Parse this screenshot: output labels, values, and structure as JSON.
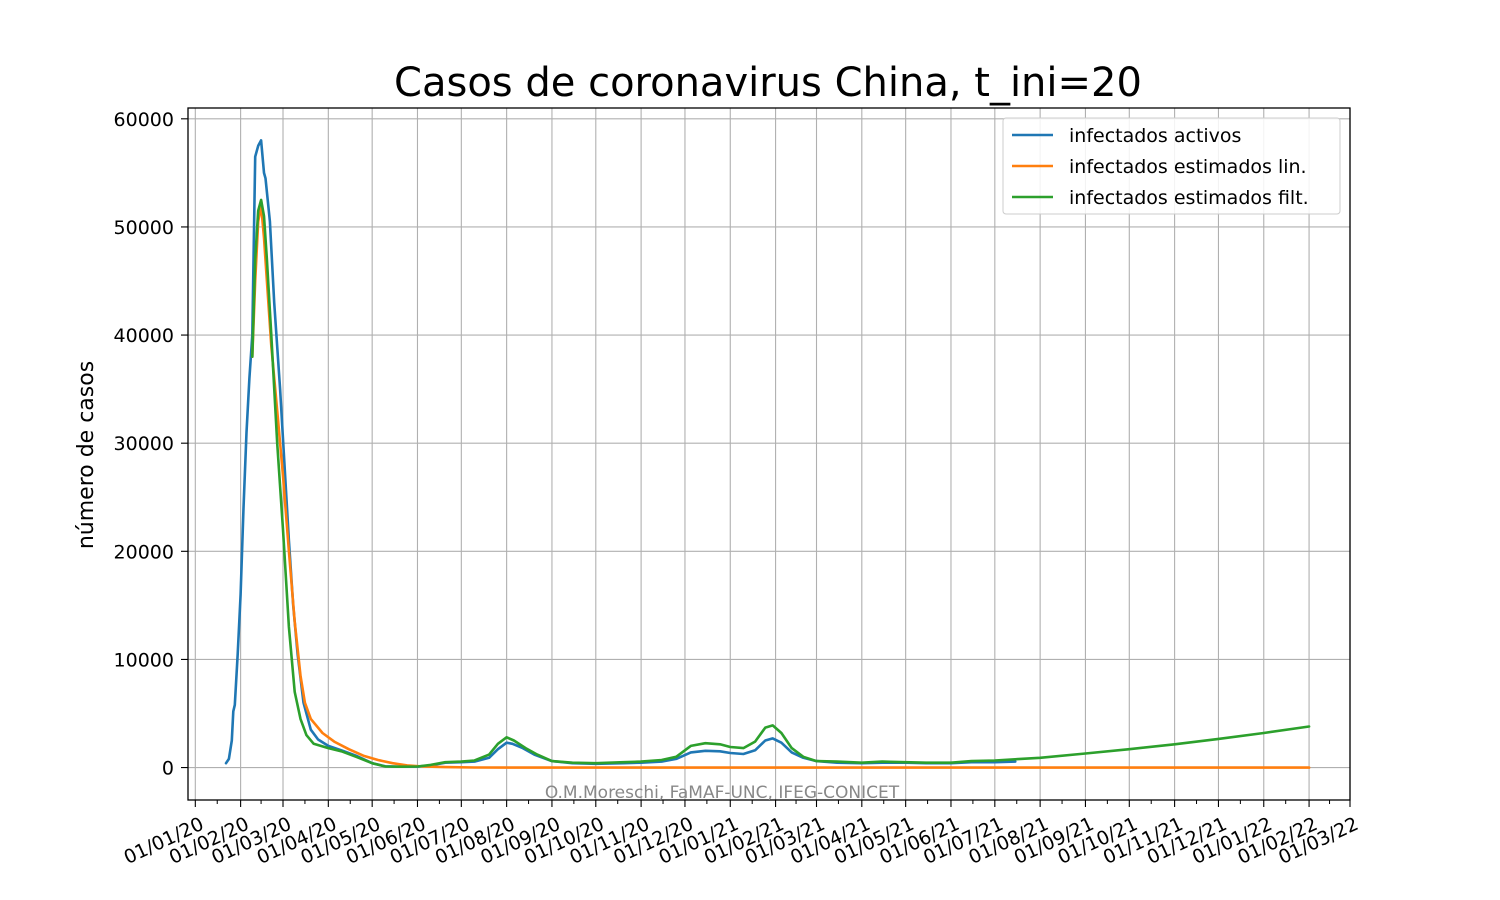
{
  "chart_data": {
    "type": "line",
    "title": "Casos de coronavirus China, t_ini=20",
    "xlabel": "",
    "ylabel": "número de casos",
    "ylim": [
      -3000,
      61000
    ],
    "xlim": [
      "2019-12-27",
      "2022-03-01"
    ],
    "y_ticks": [
      0,
      10000,
      20000,
      30000,
      40000,
      50000,
      60000
    ],
    "x_ticks": [
      {
        "date": "2020-01-01",
        "label": "01/01/20"
      },
      {
        "date": "2020-02-01",
        "label": "01/02/20"
      },
      {
        "date": "2020-03-01",
        "label": "01/03/20"
      },
      {
        "date": "2020-04-01",
        "label": "01/04/20"
      },
      {
        "date": "2020-05-01",
        "label": "01/05/20"
      },
      {
        "date": "2020-06-01",
        "label": "01/06/20"
      },
      {
        "date": "2020-07-01",
        "label": "01/07/20"
      },
      {
        "date": "2020-08-01",
        "label": "01/08/20"
      },
      {
        "date": "2020-09-01",
        "label": "01/09/20"
      },
      {
        "date": "2020-10-01",
        "label": "01/10/20"
      },
      {
        "date": "2020-11-01",
        "label": "01/11/20"
      },
      {
        "date": "2020-12-01",
        "label": "01/12/20"
      },
      {
        "date": "2021-01-01",
        "label": "01/01/21"
      },
      {
        "date": "2021-02-01",
        "label": "01/02/21"
      },
      {
        "date": "2021-03-01",
        "label": "01/03/21"
      },
      {
        "date": "2021-04-01",
        "label": "01/04/21"
      },
      {
        "date": "2021-05-01",
        "label": "01/05/21"
      },
      {
        "date": "2021-06-01",
        "label": "01/06/21"
      },
      {
        "date": "2021-07-01",
        "label": "01/07/21"
      },
      {
        "date": "2021-08-01",
        "label": "01/08/21"
      },
      {
        "date": "2021-09-01",
        "label": "01/09/21"
      },
      {
        "date": "2021-10-01",
        "label": "01/10/21"
      },
      {
        "date": "2021-11-01",
        "label": "01/11/21"
      },
      {
        "date": "2021-12-01",
        "label": "01/12/21"
      },
      {
        "date": "2022-01-01",
        "label": "01/01/22"
      },
      {
        "date": "2022-02-01",
        "label": "01/02/22"
      },
      {
        "date": "2022-03-01",
        "label": "01/03/22"
      }
    ],
    "grid": true,
    "legend_position": "top-right",
    "annotation": "O.M.Moreschi, FaMAF-UNC, IFEG-CONICET",
    "series": [
      {
        "name": "infectados activos",
        "color": "#1f77b4",
        "points": [
          [
            "2020-01-22",
            400
          ],
          [
            "2020-01-24",
            800
          ],
          [
            "2020-01-26",
            2500
          ],
          [
            "2020-01-27",
            5200
          ],
          [
            "2020-01-28",
            5800
          ],
          [
            "2020-01-30",
            10500
          ],
          [
            "2020-02-01",
            16000
          ],
          [
            "2020-02-03",
            24000
          ],
          [
            "2020-02-05",
            31000
          ],
          [
            "2020-02-07",
            36000
          ],
          [
            "2020-02-09",
            40000
          ],
          [
            "2020-02-11",
            56500
          ],
          [
            "2020-02-13",
            57500
          ],
          [
            "2020-02-15",
            58000
          ],
          [
            "2020-02-17",
            55000
          ],
          [
            "2020-02-18",
            54500
          ],
          [
            "2020-02-21",
            50500
          ],
          [
            "2020-02-24",
            43000
          ],
          [
            "2020-02-28",
            35000
          ],
          [
            "2020-03-02",
            28000
          ],
          [
            "2020-03-05",
            21000
          ],
          [
            "2020-03-08",
            15000
          ],
          [
            "2020-03-11",
            10500
          ],
          [
            "2020-03-15",
            6000
          ],
          [
            "2020-03-20",
            3500
          ],
          [
            "2020-03-25",
            2600
          ],
          [
            "2020-04-01",
            2000
          ],
          [
            "2020-04-10",
            1600
          ],
          [
            "2020-04-20",
            1100
          ],
          [
            "2020-05-01",
            400
          ],
          [
            "2020-05-10",
            120
          ],
          [
            "2020-05-20",
            80
          ],
          [
            "2020-06-01",
            90
          ],
          [
            "2020-06-10",
            200
          ],
          [
            "2020-06-20",
            450
          ],
          [
            "2020-07-01",
            500
          ],
          [
            "2020-07-10",
            550
          ],
          [
            "2020-07-20",
            900
          ],
          [
            "2020-07-26",
            1700
          ],
          [
            "2020-08-01",
            2300
          ],
          [
            "2020-08-05",
            2200
          ],
          [
            "2020-08-12",
            1800
          ],
          [
            "2020-08-20",
            1200
          ],
          [
            "2020-09-01",
            600
          ],
          [
            "2020-09-15",
            400
          ],
          [
            "2020-10-01",
            350
          ],
          [
            "2020-10-20",
            400
          ],
          [
            "2020-11-01",
            450
          ],
          [
            "2020-11-15",
            550
          ],
          [
            "2020-11-25",
            800
          ],
          [
            "2020-12-05",
            1400
          ],
          [
            "2020-12-15",
            1550
          ],
          [
            "2020-12-25",
            1500
          ],
          [
            "2021-01-01",
            1350
          ],
          [
            "2021-01-10",
            1250
          ],
          [
            "2021-01-18",
            1600
          ],
          [
            "2021-01-25",
            2500
          ],
          [
            "2021-01-30",
            2700
          ],
          [
            "2021-02-05",
            2300
          ],
          [
            "2021-02-12",
            1400
          ],
          [
            "2021-02-20",
            900
          ],
          [
            "2021-03-01",
            600
          ],
          [
            "2021-03-15",
            450
          ],
          [
            "2021-04-01",
            400
          ],
          [
            "2021-04-15",
            450
          ],
          [
            "2021-05-01",
            450
          ],
          [
            "2021-05-15",
            400
          ],
          [
            "2021-06-01",
            400
          ],
          [
            "2021-06-15",
            500
          ],
          [
            "2021-07-01",
            500
          ],
          [
            "2021-07-15",
            550
          ]
        ]
      },
      {
        "name": "infectados estimados lin.",
        "color": "#ff7f0e",
        "points": [
          [
            "2020-02-09",
            38000
          ],
          [
            "2020-02-11",
            45000
          ],
          [
            "2020-02-13",
            50500
          ],
          [
            "2020-02-15",
            52000
          ],
          [
            "2020-02-17",
            49000
          ],
          [
            "2020-02-19",
            45000
          ],
          [
            "2020-02-22",
            39000
          ],
          [
            "2020-02-26",
            33000
          ],
          [
            "2020-03-01",
            27000
          ],
          [
            "2020-03-05",
            20000
          ],
          [
            "2020-03-09",
            13500
          ],
          [
            "2020-03-13",
            8500
          ],
          [
            "2020-03-16",
            6000
          ],
          [
            "2020-03-20",
            4500
          ],
          [
            "2020-03-28",
            3200
          ],
          [
            "2020-04-05",
            2400
          ],
          [
            "2020-04-15",
            1700
          ],
          [
            "2020-04-25",
            1100
          ],
          [
            "2020-05-05",
            700
          ],
          [
            "2020-05-15",
            400
          ],
          [
            "2020-05-25",
            200
          ],
          [
            "2020-06-05",
            100
          ],
          [
            "2020-06-20",
            40
          ],
          [
            "2020-07-10",
            10
          ],
          [
            "2020-09-01",
            0
          ],
          [
            "2021-01-01",
            0
          ],
          [
            "2021-06-01",
            0
          ],
          [
            "2021-12-01",
            0
          ],
          [
            "2022-02-01",
            0
          ]
        ]
      },
      {
        "name": "infectados estimados filt.",
        "color": "#2ca02c",
        "points": [
          [
            "2020-02-09",
            38000
          ],
          [
            "2020-02-11",
            47000
          ],
          [
            "2020-02-13",
            51500
          ],
          [
            "2020-02-15",
            52500
          ],
          [
            "2020-02-17",
            51000
          ],
          [
            "2020-02-19",
            47000
          ],
          [
            "2020-02-22",
            40000
          ],
          [
            "2020-02-26",
            30000
          ],
          [
            "2020-03-01",
            22000
          ],
          [
            "2020-03-05",
            13000
          ],
          [
            "2020-03-09",
            7000
          ],
          [
            "2020-03-13",
            4500
          ],
          [
            "2020-03-17",
            3000
          ],
          [
            "2020-03-22",
            2200
          ],
          [
            "2020-04-01",
            1800
          ],
          [
            "2020-04-10",
            1500
          ],
          [
            "2020-04-20",
            1000
          ],
          [
            "2020-05-01",
            400
          ],
          [
            "2020-05-10",
            100
          ],
          [
            "2020-05-20",
            80
          ],
          [
            "2020-06-01",
            100
          ],
          [
            "2020-06-10",
            250
          ],
          [
            "2020-06-20",
            500
          ],
          [
            "2020-07-01",
            550
          ],
          [
            "2020-07-10",
            650
          ],
          [
            "2020-07-20",
            1200
          ],
          [
            "2020-07-26",
            2200
          ],
          [
            "2020-08-01",
            2800
          ],
          [
            "2020-08-06",
            2500
          ],
          [
            "2020-08-14",
            1800
          ],
          [
            "2020-08-22",
            1200
          ],
          [
            "2020-09-01",
            600
          ],
          [
            "2020-09-15",
            450
          ],
          [
            "2020-10-01",
            400
          ],
          [
            "2020-10-20",
            500
          ],
          [
            "2020-11-01",
            550
          ],
          [
            "2020-11-15",
            700
          ],
          [
            "2020-11-25",
            1000
          ],
          [
            "2020-12-05",
            2000
          ],
          [
            "2020-12-15",
            2250
          ],
          [
            "2020-12-25",
            2150
          ],
          [
            "2021-01-01",
            1900
          ],
          [
            "2021-01-10",
            1800
          ],
          [
            "2021-01-18",
            2400
          ],
          [
            "2021-01-25",
            3700
          ],
          [
            "2021-01-30",
            3900
          ],
          [
            "2021-02-05",
            3200
          ],
          [
            "2021-02-12",
            1800
          ],
          [
            "2021-02-20",
            1000
          ],
          [
            "2021-03-01",
            600
          ],
          [
            "2021-03-15",
            550
          ],
          [
            "2021-04-01",
            450
          ],
          [
            "2021-04-15",
            550
          ],
          [
            "2021-05-01",
            500
          ],
          [
            "2021-05-15",
            450
          ],
          [
            "2021-06-01",
            450
          ],
          [
            "2021-06-15",
            600
          ],
          [
            "2021-07-01",
            650
          ],
          [
            "2021-08-01",
            900
          ],
          [
            "2021-09-01",
            1300
          ],
          [
            "2021-10-01",
            1700
          ],
          [
            "2021-11-01",
            2150
          ],
          [
            "2021-12-01",
            2650
          ],
          [
            "2022-01-01",
            3200
          ],
          [
            "2022-02-01",
            3800
          ]
        ]
      }
    ]
  }
}
